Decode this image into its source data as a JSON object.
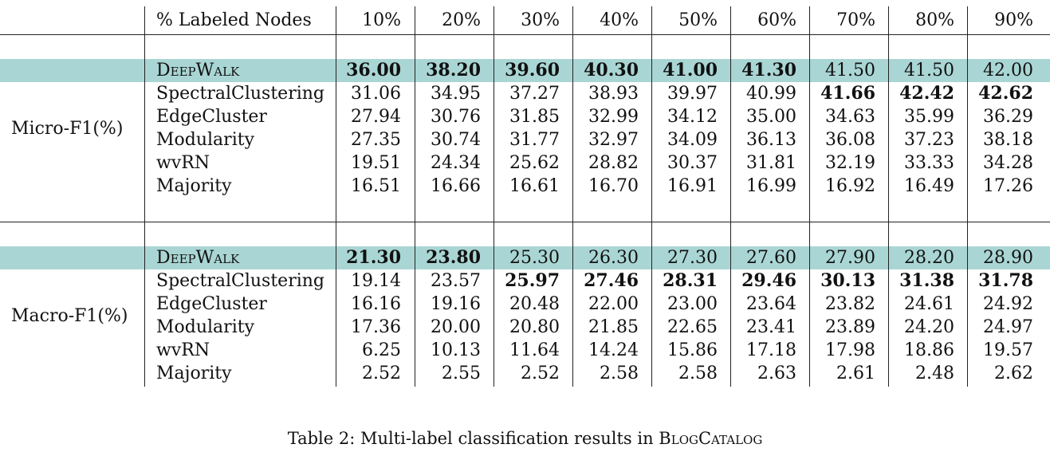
{
  "header": {
    "label": "% Labeled Nodes",
    "columns": [
      "10%",
      "20%",
      "30%",
      "40%",
      "50%",
      "60%",
      "70%",
      "80%",
      "90%"
    ]
  },
  "sections": [
    {
      "metric": "Micro-F1(%)",
      "rows": [
        {
          "method": "DeepWalk",
          "values": [
            "36.00",
            "38.20",
            "39.60",
            "40.30",
            "41.00",
            "41.30",
            "41.50",
            "41.50",
            "42.00"
          ],
          "bold": [
            true,
            true,
            true,
            true,
            true,
            true,
            false,
            false,
            false
          ],
          "highlight": true
        },
        {
          "method": "SpectralClustering",
          "values": [
            "31.06",
            "34.95",
            "37.27",
            "38.93",
            "39.97",
            "40.99",
            "41.66",
            "42.42",
            "42.62"
          ],
          "bold": [
            false,
            false,
            false,
            false,
            false,
            false,
            true,
            true,
            true
          ]
        },
        {
          "method": "EdgeCluster",
          "values": [
            "27.94",
            "30.76",
            "31.85",
            "32.99",
            "34.12",
            "35.00",
            "34.63",
            "35.99",
            "36.29"
          ]
        },
        {
          "method": "Modularity",
          "values": [
            "27.35",
            "30.74",
            "31.77",
            "32.97",
            "34.09",
            "36.13",
            "36.08",
            "37.23",
            "38.18"
          ]
        },
        {
          "method": "wvRN",
          "values": [
            "19.51",
            "24.34",
            "25.62",
            "28.82",
            "30.37",
            "31.81",
            "32.19",
            "33.33",
            "34.28"
          ]
        },
        {
          "method": "Majority",
          "values": [
            "16.51",
            "16.66",
            "16.61",
            "16.70",
            "16.91",
            "16.99",
            "16.92",
            "16.49",
            "17.26"
          ]
        }
      ]
    },
    {
      "metric": "Macro-F1(%)",
      "rows": [
        {
          "method": "DeepWalk",
          "values": [
            "21.30",
            "23.80",
            "25.30",
            "26.30",
            "27.30",
            "27.60",
            "27.90",
            "28.20",
            "28.90"
          ],
          "bold": [
            true,
            true,
            false,
            false,
            false,
            false,
            false,
            false,
            false
          ],
          "highlight": true
        },
        {
          "method": "SpectralClustering",
          "values": [
            "19.14",
            "23.57",
            "25.97",
            "27.46",
            "28.31",
            "29.46",
            "30.13",
            "31.38",
            "31.78"
          ],
          "bold": [
            false,
            false,
            true,
            true,
            true,
            true,
            true,
            true,
            true
          ]
        },
        {
          "method": "EdgeCluster",
          "values": [
            "16.16",
            "19.16",
            "20.48",
            "22.00",
            "23.00",
            "23.64",
            "23.82",
            "24.61",
            "24.92"
          ]
        },
        {
          "method": "Modularity",
          "values": [
            "17.36",
            "20.00",
            "20.80",
            "21.85",
            "22.65",
            "23.41",
            "23.89",
            "24.20",
            "24.97"
          ]
        },
        {
          "method": "wvRN",
          "values": [
            "6.25",
            "10.13",
            "11.64",
            "14.24",
            "15.86",
            "17.18",
            "17.98",
            "18.86",
            "19.57"
          ]
        },
        {
          "method": "Majority",
          "values": [
            "2.52",
            "2.55",
            "2.52",
            "2.58",
            "2.58",
            "2.63",
            "2.61",
            "2.48",
            "2.62"
          ]
        }
      ]
    }
  ],
  "caption": {
    "prefix": "Table 2: Multi-label classification results in ",
    "title": "BlogCatalog"
  }
}
